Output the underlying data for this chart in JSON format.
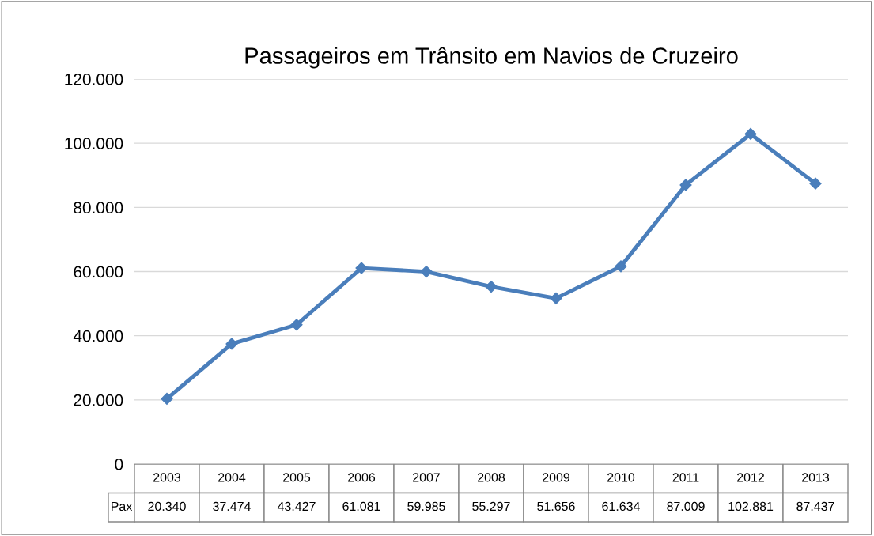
{
  "chart_data": {
    "type": "line",
    "title": "Passageiros em Trânsito em Navios de Cruzeiro",
    "categories": [
      "2003",
      "2004",
      "2005",
      "2006",
      "2007",
      "2008",
      "2009",
      "2010",
      "2011",
      "2012",
      "2013"
    ],
    "series": [
      {
        "name": "Pax",
        "color": "#4a7ebb",
        "values": [
          20340,
          37474,
          43427,
          61081,
          59985,
          55297,
          51656,
          61634,
          87009,
          102881,
          87437
        ],
        "value_labels": [
          "20.340",
          "37.474",
          "43.427",
          "61.081",
          "59.985",
          "55.297",
          "51.656",
          "61.634",
          "87.009",
          "102.881",
          "87.437"
        ]
      }
    ],
    "ylim": [
      0,
      120000
    ],
    "yticks": [
      0,
      {
        "value": 20000,
        "label": "20.000"
      },
      {
        "value": 40000,
        "label": "40.000"
      },
      {
        "value": 60000,
        "label": "60.000"
      },
      {
        "value": 80000,
        "label": "80.000"
      },
      {
        "value": 100000,
        "label": "100.000"
      },
      {
        "value": 120000,
        "label": "120.000"
      }
    ],
    "grid": "y",
    "marker": "diamond",
    "line_style": "solid",
    "legend": false,
    "data_labels": true
  }
}
